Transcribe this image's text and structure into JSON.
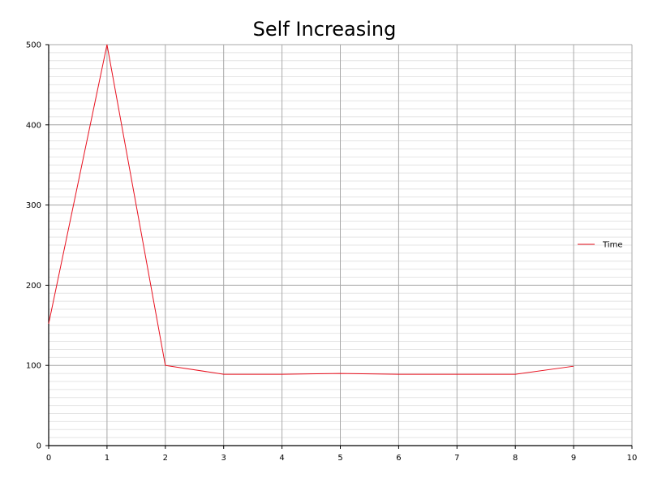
{
  "chart_data": {
    "type": "line",
    "title": "Self Increasing",
    "xlabel": "",
    "ylabel": "",
    "xlim": [
      0,
      10
    ],
    "ylim": [
      0,
      500
    ],
    "x_ticks": [
      "0",
      "1",
      "2",
      "3",
      "4",
      "5",
      "6",
      "7",
      "8",
      "9",
      "10"
    ],
    "y_ticks": [
      "0",
      "100",
      "200",
      "300",
      "400",
      "500"
    ],
    "grid": true,
    "legend_position": "right",
    "x": [
      0,
      1,
      2,
      3,
      4,
      5,
      6,
      7,
      8,
      9
    ],
    "series": [
      {
        "name": "Time",
        "color": "#e8101e",
        "values": [
          152,
          500,
          100,
          89,
          89,
          90,
          89,
          89,
          89,
          99
        ]
      }
    ]
  }
}
